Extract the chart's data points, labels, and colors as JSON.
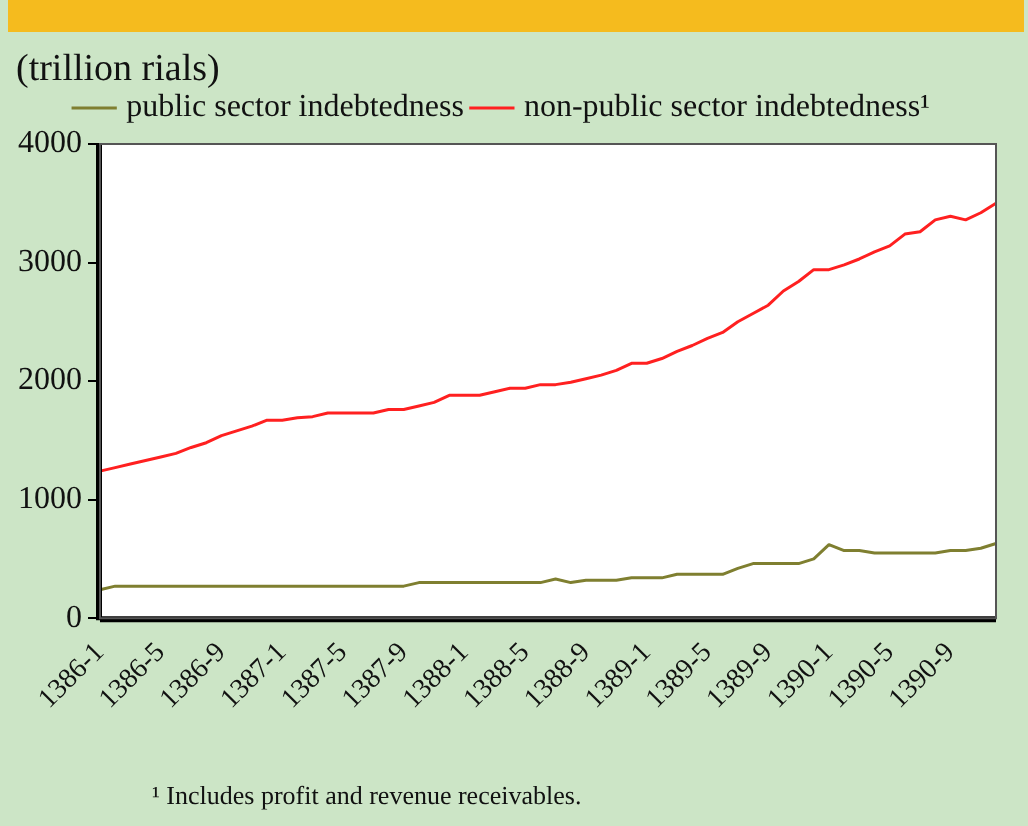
{
  "chart_data": {
    "type": "line",
    "ylabel": "(trillion rials)",
    "annotations": [
      "¹ Includes profit and revenue  receivables."
    ],
    "categories": [
      "1386-1",
      null,
      null,
      null,
      "1386-5",
      null,
      null,
      null,
      "1386-9",
      null,
      null,
      null,
      "1387-1",
      null,
      null,
      null,
      "1387-5",
      null,
      null,
      null,
      "1387-9",
      null,
      null,
      null,
      "1388-1",
      null,
      null,
      null,
      "1388-5",
      null,
      null,
      null,
      "1388-9",
      null,
      null,
      null,
      "1389-1",
      null,
      null,
      null,
      "1389-5",
      null,
      null,
      null,
      "1389-9",
      null,
      null,
      null,
      "1390-1",
      null,
      null,
      null,
      "1390-5",
      null,
      null,
      null,
      "1390-9",
      null,
      null,
      null
    ],
    "series": [
      {
        "name": "public sector indebtedness",
        "color": "#7f7f30",
        "values": [
          240,
          270,
          270,
          270,
          270,
          270,
          270,
          270,
          270,
          270,
          270,
          270,
          270,
          270,
          270,
          270,
          270,
          270,
          270,
          270,
          270,
          300,
          300,
          300,
          300,
          300,
          300,
          300,
          300,
          300,
          330,
          300,
          320,
          320,
          320,
          340,
          340,
          340,
          370,
          370,
          370,
          370,
          420,
          460,
          460,
          460,
          460,
          500,
          620,
          570,
          570,
          550,
          550,
          550,
          550,
          550,
          570,
          570,
          590,
          630
        ]
      },
      {
        "name": "non-public sector indebtedness¹",
        "color": "#ff2020",
        "values": [
          1240,
          1270,
          1300,
          1330,
          1360,
          1390,
          1440,
          1480,
          1540,
          1580,
          1620,
          1670,
          1670,
          1690,
          1700,
          1730,
          1730,
          1730,
          1730,
          1760,
          1760,
          1790,
          1820,
          1880,
          1880,
          1880,
          1910,
          1940,
          1940,
          1970,
          1970,
          1990,
          2020,
          2050,
          2090,
          2150,
          2150,
          2190,
          2250,
          2300,
          2360,
          2410,
          2500,
          2570,
          2640,
          2760,
          2840,
          2940,
          2940,
          2980,
          3030,
          3090,
          3140,
          3240,
          3260,
          3360,
          3390,
          3360,
          3420,
          3500
        ]
      }
    ],
    "ylim": [
      0,
      4000
    ],
    "yticks": [
      0,
      1000,
      2000,
      3000,
      4000
    ],
    "grid": false,
    "legend": "top",
    "marker": "none",
    "line_style": "solid"
  }
}
